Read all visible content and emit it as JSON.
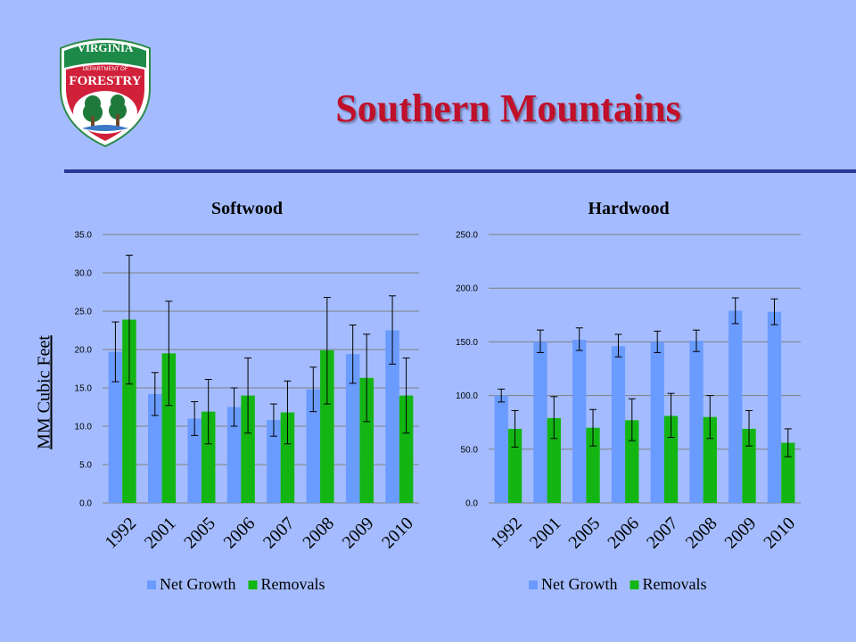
{
  "slide": {
    "title": "Southern Mountains",
    "y_axis_label": "MM Cubic Feet",
    "logo": {
      "top_text": "VIRGINIA",
      "mid_text": "DEPARTMENT OF",
      "main_text": "FORESTRY"
    }
  },
  "colors": {
    "net_growth": "#6a9bff",
    "removals": "#13b513",
    "title": "#c0102a",
    "rule": "#2a3795",
    "background": "#a4bcff"
  },
  "chart_data": [
    {
      "type": "bar",
      "title": "Softwood",
      "categories": [
        "1992",
        "2001",
        "2005",
        "2006",
        "2007",
        "2008",
        "2009",
        "2010"
      ],
      "ylim": [
        0,
        35
      ],
      "yticks": [
        "0.0",
        "5.0",
        "10.0",
        "15.0",
        "20.0",
        "25.0",
        "30.0",
        "35.0"
      ],
      "grid": true,
      "legend": "bottom",
      "series": [
        {
          "name": "Net Growth",
          "values": [
            19.7,
            14.2,
            11.0,
            12.5,
            10.8,
            14.8,
            19.4,
            22.5
          ],
          "error_low": [
            15.8,
            11.4,
            8.8,
            10.0,
            8.7,
            11.9,
            15.6,
            18.1
          ],
          "error_high": [
            23.6,
            17.0,
            13.2,
            15.0,
            12.9,
            17.7,
            23.2,
            27.0
          ]
        },
        {
          "name": "Removals",
          "values": [
            23.9,
            19.5,
            11.9,
            14.0,
            11.8,
            19.9,
            16.3,
            14.0
          ],
          "error_low": [
            15.5,
            12.7,
            7.7,
            9.1,
            7.7,
            12.9,
            10.6,
            9.1
          ],
          "error_high": [
            32.3,
            26.3,
            16.1,
            18.9,
            15.9,
            26.8,
            22.0,
            18.9
          ]
        }
      ]
    },
    {
      "type": "bar",
      "title": "Hardwood",
      "categories": [
        "1992",
        "2001",
        "2005",
        "2006",
        "2007",
        "2008",
        "2009",
        "2010"
      ],
      "ylim": [
        0,
        250
      ],
      "yticks": [
        "0.0",
        "50.0",
        "100.0",
        "150.0",
        "200.0",
        "250.0"
      ],
      "grid": true,
      "legend": "bottom",
      "series": [
        {
          "name": "Net Growth",
          "values": [
            100,
            150,
            152,
            146,
            150,
            151,
            179,
            178
          ],
          "error_low": [
            94,
            140,
            142,
            136,
            140,
            141,
            167,
            166
          ],
          "error_high": [
            106,
            161,
            163,
            157,
            160,
            161,
            191,
            190
          ]
        },
        {
          "name": "Removals",
          "values": [
            69,
            79,
            70,
            77,
            81,
            80,
            69,
            56
          ],
          "error_low": [
            52,
            60,
            53,
            58,
            61,
            60,
            53,
            43
          ],
          "error_high": [
            86,
            99,
            87,
            97,
            102,
            100,
            86,
            69
          ]
        }
      ]
    }
  ]
}
